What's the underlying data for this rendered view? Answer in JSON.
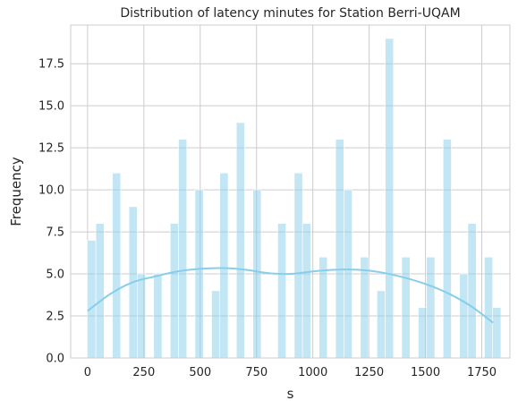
{
  "chart_data": {
    "type": "bar",
    "title": "Distribution of latency minutes for Station Berri-UQAM",
    "xlabel": "s",
    "ylabel": "Frequency",
    "xlim": [
      -75,
      1875
    ],
    "ylim": [
      0,
      19.8
    ],
    "grid": true,
    "xticks": [
      0,
      250,
      500,
      750,
      1000,
      1250,
      1500,
      1750
    ],
    "xtick_labels": [
      "0",
      "250",
      "500",
      "750",
      "1000",
      "1250",
      "1500",
      "1750"
    ],
    "yticks": [
      0,
      2.5,
      5,
      7.5,
      10,
      12.5,
      15,
      17.5
    ],
    "ytick_labels": [
      "0.0",
      "2.5",
      "5.0",
      "7.5",
      "10.0",
      "12.5",
      "15.0",
      "17.5"
    ],
    "bin_width": 36.7,
    "bins": [
      {
        "x": 0,
        "count": 7
      },
      {
        "x": 36.7,
        "count": 8
      },
      {
        "x": 110.1,
        "count": 11
      },
      {
        "x": 183.5,
        "count": 9
      },
      {
        "x": 220.2,
        "count": 5
      },
      {
        "x": 293.6,
        "count": 5
      },
      {
        "x": 367,
        "count": 8
      },
      {
        "x": 403.7,
        "count": 13
      },
      {
        "x": 477.1,
        "count": 10
      },
      {
        "x": 550.5,
        "count": 4
      },
      {
        "x": 587.2,
        "count": 11
      },
      {
        "x": 660.6,
        "count": 14
      },
      {
        "x": 734,
        "count": 10
      },
      {
        "x": 844.1,
        "count": 8
      },
      {
        "x": 917.5,
        "count": 11
      },
      {
        "x": 954.2,
        "count": 8
      },
      {
        "x": 1027.6,
        "count": 6
      },
      {
        "x": 1101,
        "count": 13
      },
      {
        "x": 1137.7,
        "count": 10
      },
      {
        "x": 1211.1,
        "count": 6
      },
      {
        "x": 1284.5,
        "count": 4
      },
      {
        "x": 1321.2,
        "count": 19
      },
      {
        "x": 1394.6,
        "count": 6
      },
      {
        "x": 1468,
        "count": 3
      },
      {
        "x": 1504.7,
        "count": 6
      },
      {
        "x": 1578.1,
        "count": 13
      },
      {
        "x": 1651.5,
        "count": 5
      },
      {
        "x": 1688.2,
        "count": 8
      },
      {
        "x": 1761.6,
        "count": 6
      },
      {
        "x": 1798.3,
        "count": 3
      }
    ],
    "kde": {
      "x": [
        0,
        100,
        200,
        300,
        400,
        500,
        600,
        700,
        800,
        900,
        1000,
        1100,
        1200,
        1300,
        1400,
        1500,
        1600,
        1700,
        1800
      ],
      "y": [
        2.8,
        3.8,
        4.5,
        4.85,
        5.15,
        5.3,
        5.35,
        5.25,
        5.05,
        5.0,
        5.15,
        5.25,
        5.25,
        5.1,
        4.8,
        4.4,
        3.85,
        3.1,
        2.1
      ]
    },
    "colors": {
      "bar": "#87ceeb",
      "kde": "#87ceeb",
      "grid": "#cccccc",
      "text": "#262626"
    }
  }
}
